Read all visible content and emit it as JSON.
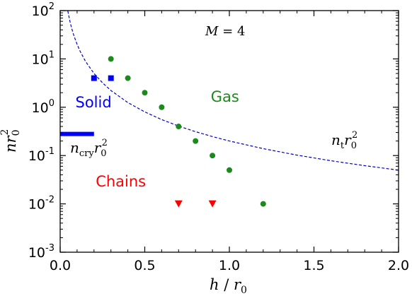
{
  "chart_data": {
    "type": "scatter",
    "x_axis": {
      "label_parts": [
        "h",
        " / ",
        "r",
        "0"
      ],
      "range": [
        0.0,
        2.0
      ],
      "ticks": [
        {
          "value": 0.0,
          "label": "0.0"
        },
        {
          "value": 0.5,
          "label": "0.5"
        },
        {
          "value": 1.0,
          "label": "1.0"
        },
        {
          "value": 1.5,
          "label": "1.5"
        },
        {
          "value": 2.0,
          "label": "2.0"
        }
      ]
    },
    "y_axis": {
      "label_parts": [
        "nr",
        "0",
        "2"
      ],
      "scale": "log",
      "range": [
        0.001,
        100
      ],
      "ticks": [
        {
          "value": 0.001,
          "base": "10",
          "exp": "-3"
        },
        {
          "value": 0.01,
          "base": "10",
          "exp": "-2"
        },
        {
          "value": 0.1,
          "base": "10",
          "exp": "-1"
        },
        {
          "value": 1,
          "base": "10",
          "exp": "0"
        },
        {
          "value": 10,
          "base": "10",
          "exp": "1"
        },
        {
          "value": 100,
          "base": "10",
          "exp": "2"
        }
      ]
    },
    "grid": false,
    "annotation_parts": [
      "M",
      " = 4"
    ],
    "series": [
      {
        "marker": "circle",
        "color": "#1a8a1a",
        "points": [
          {
            "x": 0.3,
            "y": 10
          },
          {
            "x": 0.4,
            "y": 4
          },
          {
            "x": 0.5,
            "y": 2
          },
          {
            "x": 0.6,
            "y": 1
          },
          {
            "x": 0.7,
            "y": 0.4
          },
          {
            "x": 0.8,
            "y": 0.2
          },
          {
            "x": 0.9,
            "y": 0.1
          },
          {
            "x": 1.0,
            "y": 0.05
          },
          {
            "x": 1.2,
            "y": 0.01
          }
        ]
      },
      {
        "marker": "square",
        "color": "#0000ff",
        "points": [
          {
            "x": 0.2,
            "y": 4
          },
          {
            "x": 0.3,
            "y": 4
          }
        ]
      },
      {
        "marker": "triangle-down",
        "color": "#ff0000",
        "points": [
          {
            "x": 0.7,
            "y": 0.01
          },
          {
            "x": 0.9,
            "y": 0.01
          }
        ]
      }
    ],
    "curve": {
      "style": "dashed",
      "color": "#0000cc",
      "formula": "n_t r0^2 = 0.2 / h^2 (clipped to axes)",
      "x": [
        0.045,
        0.05,
        0.06,
        0.07,
        0.08,
        0.1,
        0.12,
        0.15,
        0.2,
        0.25,
        0.3,
        0.4,
        0.5,
        0.6,
        0.7,
        0.8,
        0.9,
        1.0,
        1.2,
        1.4,
        1.6,
        1.8,
        2.0
      ],
      "label_parts": [
        "n",
        "t",
        "r",
        "0",
        "2"
      ]
    },
    "solid_line": {
      "color": "#0000ff",
      "x": [
        0.0,
        0.2
      ],
      "y": 0.28,
      "label_parts": [
        "n",
        "cry",
        "r",
        "0",
        "2"
      ]
    },
    "regions": [
      {
        "text": "Solid",
        "color": "#0000ff",
        "x": 0.09,
        "y": 1.0
      },
      {
        "text": "Gas",
        "color": "#1a8a1a",
        "x": 0.89,
        "y": 1.3
      },
      {
        "text": "Chains",
        "color": "#ff0000",
        "x": 0.21,
        "y": 0.023
      }
    ]
  }
}
